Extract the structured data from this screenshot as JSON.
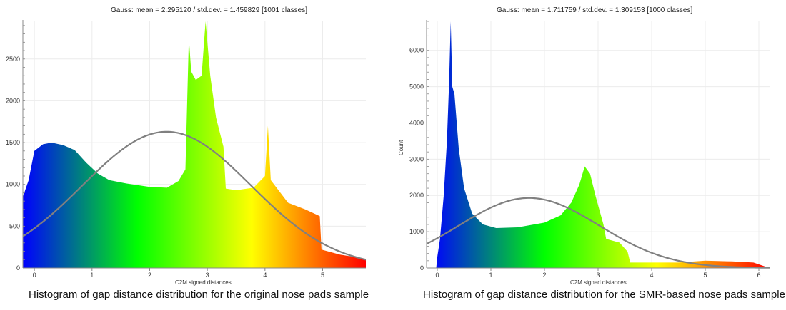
{
  "chart_data": [
    {
      "type": "histogram",
      "title": "Gauss: mean = 2.295120 / std.dev. = 1.459829 [1001 classes]",
      "xlabel": "C2M signed distances",
      "ylabel": "",
      "caption": "Histogram of gap distance distribution for the original nose pads sample",
      "xlim": [
        -0.2,
        5.75
      ],
      "ylim": [
        0,
        2950
      ],
      "x_ticks": [
        0,
        1,
        2,
        3,
        4,
        5
      ],
      "y_ticks": [
        0,
        500,
        1000,
        1500,
        2000,
        2500
      ],
      "colormap": [
        "#0000ff",
        "#00ff00",
        "#ffff00",
        "#ff0000"
      ],
      "curve_color": "#808080",
      "gauss": {
        "mean": 2.29512,
        "std": 1.459829,
        "peak": 1630
      },
      "bins": [
        {
          "x": -0.2,
          "y": 850
        },
        {
          "x": -0.1,
          "y": 1050
        },
        {
          "x": 0.0,
          "y": 1400
        },
        {
          "x": 0.15,
          "y": 1480
        },
        {
          "x": 0.3,
          "y": 1500
        },
        {
          "x": 0.5,
          "y": 1470
        },
        {
          "x": 0.7,
          "y": 1410
        },
        {
          "x": 0.9,
          "y": 1260
        },
        {
          "x": 1.1,
          "y": 1130
        },
        {
          "x": 1.3,
          "y": 1050
        },
        {
          "x": 1.6,
          "y": 1010
        },
        {
          "x": 2.0,
          "y": 970
        },
        {
          "x": 2.3,
          "y": 960
        },
        {
          "x": 2.5,
          "y": 1040
        },
        {
          "x": 2.62,
          "y": 1180
        },
        {
          "x": 2.68,
          "y": 2750
        },
        {
          "x": 2.72,
          "y": 2350
        },
        {
          "x": 2.8,
          "y": 2250
        },
        {
          "x": 2.9,
          "y": 2300
        },
        {
          "x": 2.97,
          "y": 2950
        },
        {
          "x": 3.05,
          "y": 2300
        },
        {
          "x": 3.15,
          "y": 1800
        },
        {
          "x": 3.28,
          "y": 1450
        },
        {
          "x": 3.32,
          "y": 950
        },
        {
          "x": 3.5,
          "y": 930
        },
        {
          "x": 3.8,
          "y": 960
        },
        {
          "x": 4.0,
          "y": 1100
        },
        {
          "x": 4.05,
          "y": 1700
        },
        {
          "x": 4.1,
          "y": 1050
        },
        {
          "x": 4.4,
          "y": 780
        },
        {
          "x": 4.7,
          "y": 700
        },
        {
          "x": 4.95,
          "y": 620
        },
        {
          "x": 4.98,
          "y": 220
        },
        {
          "x": 5.3,
          "y": 160
        },
        {
          "x": 5.75,
          "y": 110
        }
      ]
    },
    {
      "type": "histogram",
      "title": "Gauss: mean = 1.711759 / std.dev. = 1.309153 [1000 classes]",
      "xlabel": "C2M signed distances",
      "ylabel": "Count",
      "caption": "Histogram of gap distance distribution for the SMR-based nose pads sample",
      "xlim": [
        -0.2,
        6.2
      ],
      "ylim": [
        0,
        6800
      ],
      "x_ticks": [
        0,
        1,
        2,
        3,
        4,
        5,
        6
      ],
      "y_ticks": [
        0,
        1000,
        2000,
        3000,
        4000,
        5000,
        6000
      ],
      "colormap": [
        "#0000ff",
        "#00ff00",
        "#ffff00",
        "#ff0000"
      ],
      "curve_color": "#808080",
      "gauss": {
        "mean": 1.711759,
        "std": 1.309153,
        "peak": 1930
      },
      "bins": [
        {
          "x": -0.02,
          "y": 0
        },
        {
          "x": 0.0,
          "y": 300
        },
        {
          "x": 0.05,
          "y": 800
        },
        {
          "x": 0.12,
          "y": 2000
        },
        {
          "x": 0.18,
          "y": 3500
        },
        {
          "x": 0.22,
          "y": 5100
        },
        {
          "x": 0.25,
          "y": 6800
        },
        {
          "x": 0.28,
          "y": 5000
        },
        {
          "x": 0.32,
          "y": 4800
        },
        {
          "x": 0.4,
          "y": 3300
        },
        {
          "x": 0.5,
          "y": 2200
        },
        {
          "x": 0.65,
          "y": 1500
        },
        {
          "x": 0.85,
          "y": 1200
        },
        {
          "x": 1.1,
          "y": 1100
        },
        {
          "x": 1.5,
          "y": 1120
        },
        {
          "x": 2.0,
          "y": 1250
        },
        {
          "x": 2.3,
          "y": 1450
        },
        {
          "x": 2.5,
          "y": 1800
        },
        {
          "x": 2.65,
          "y": 2300
        },
        {
          "x": 2.75,
          "y": 2800
        },
        {
          "x": 2.85,
          "y": 2600
        },
        {
          "x": 2.95,
          "y": 2000
        },
        {
          "x": 3.1,
          "y": 1200
        },
        {
          "x": 3.15,
          "y": 800
        },
        {
          "x": 3.4,
          "y": 700
        },
        {
          "x": 3.55,
          "y": 450
        },
        {
          "x": 3.6,
          "y": 150
        },
        {
          "x": 4.5,
          "y": 150
        },
        {
          "x": 5.0,
          "y": 200
        },
        {
          "x": 5.5,
          "y": 180
        },
        {
          "x": 5.9,
          "y": 150
        },
        {
          "x": 6.1,
          "y": 50
        },
        {
          "x": 6.2,
          "y": 0
        }
      ]
    }
  ]
}
